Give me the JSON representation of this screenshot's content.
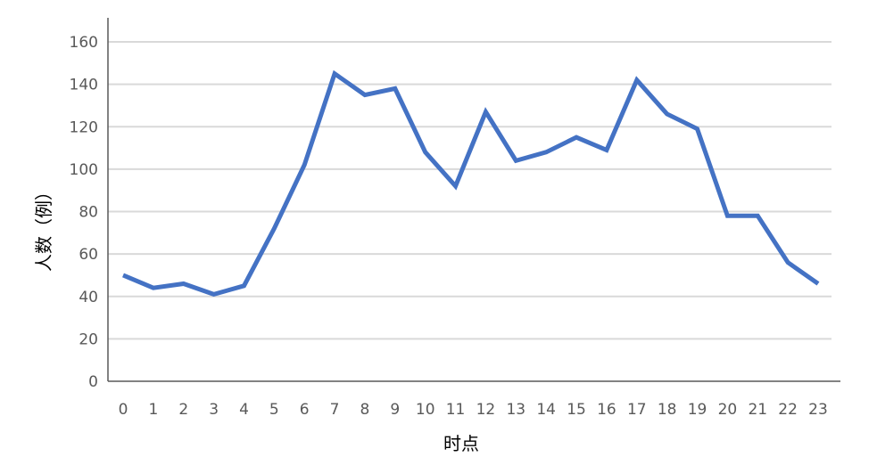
{
  "chart_data": {
    "type": "line",
    "title": "",
    "xlabel": "时点",
    "ylabel": "人数（例）",
    "categories": [
      "0",
      "1",
      "2",
      "3",
      "4",
      "5",
      "6",
      "7",
      "8",
      "9",
      "10",
      "11",
      "12",
      "13",
      "14",
      "15",
      "16",
      "17",
      "18",
      "19",
      "20",
      "21",
      "22",
      "23"
    ],
    "series": [
      {
        "values": [
          50,
          44,
          46,
          41,
          45,
          72,
          102,
          145,
          135,
          138,
          108,
          92,
          127,
          104,
          108,
          115,
          109,
          142,
          126,
          119,
          78,
          78,
          56,
          46
        ],
        "color": "#4472C4"
      }
    ],
    "ylim": [
      0,
      160
    ],
    "yticks": [
      0,
      20,
      40,
      60,
      80,
      100,
      120,
      140,
      160
    ],
    "grid": true,
    "legend": "none"
  }
}
